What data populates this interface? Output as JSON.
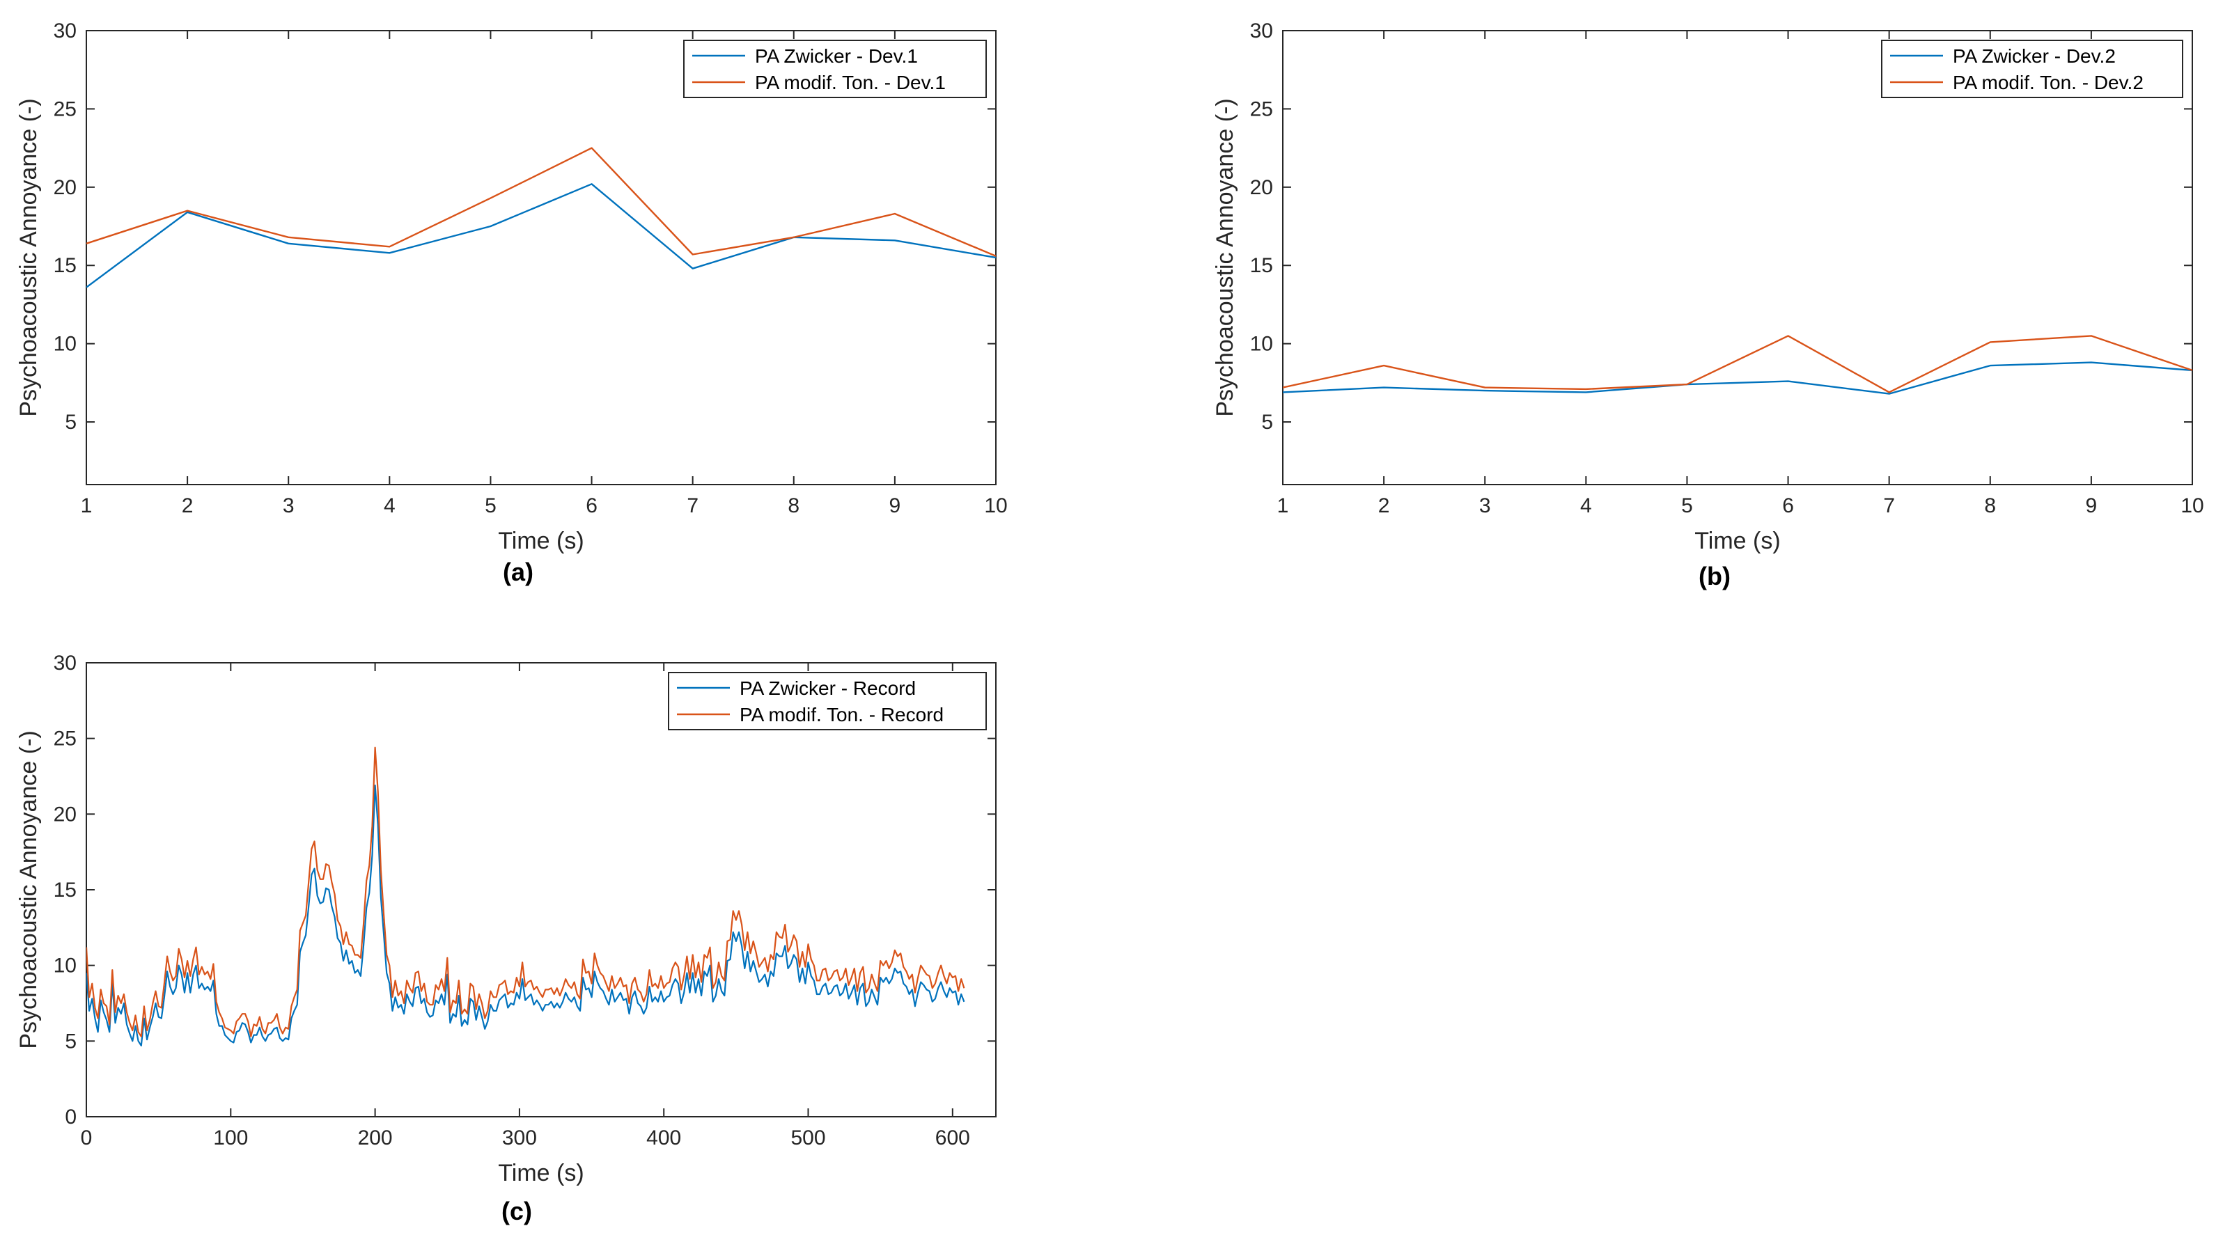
{
  "colors": {
    "zwicker": "#0072BD",
    "modified": "#D95319",
    "axis": "#262626"
  },
  "chart_data": [
    {
      "type": "line",
      "caption": "(a)",
      "xlabel": "Time (s)",
      "ylabel": "Psychoacoustic Annoyance (-)",
      "xlim": [
        1,
        10
      ],
      "ylim": [
        1,
        30
      ],
      "xticks": [
        1,
        2,
        3,
        4,
        5,
        6,
        7,
        8,
        9,
        10
      ],
      "yticks": [
        5,
        10,
        15,
        20,
        25,
        30
      ],
      "grid": false,
      "legend": "top-right",
      "x": [
        1,
        2,
        3,
        4,
        5,
        6,
        7,
        8,
        9,
        10
      ],
      "series": [
        {
          "name": "PA Zwicker - Dev.1",
          "color": "#0072BD",
          "values": [
            13.6,
            18.4,
            16.4,
            15.8,
            17.5,
            20.2,
            14.8,
            16.8,
            16.6,
            15.5
          ]
        },
        {
          "name": "PA modif. Ton. - Dev.1",
          "color": "#D95319",
          "values": [
            16.4,
            18.5,
            16.8,
            16.2,
            19.3,
            22.5,
            15.7,
            16.8,
            18.3,
            15.6
          ]
        }
      ]
    },
    {
      "type": "line",
      "caption": "(b)",
      "xlabel": "Time (s)",
      "ylabel": "Psychoacoustic Annoyance (-)",
      "xlim": [
        1,
        10
      ],
      "ylim": [
        1,
        30
      ],
      "xticks": [
        1,
        2,
        3,
        4,
        5,
        6,
        7,
        8,
        9,
        10
      ],
      "yticks": [
        5,
        10,
        15,
        20,
        25,
        30
      ],
      "grid": false,
      "legend": "top-right",
      "x": [
        1,
        2,
        3,
        4,
        5,
        6,
        7,
        8,
        9,
        10
      ],
      "series": [
        {
          "name": "PA Zwicker - Dev.2",
          "color": "#0072BD",
          "values": [
            6.9,
            7.2,
            7.0,
            6.9,
            7.4,
            7.6,
            6.8,
            8.6,
            8.8,
            8.3
          ]
        },
        {
          "name": "PA modif. Ton. - Dev.2",
          "color": "#D95319",
          "values": [
            7.2,
            8.6,
            7.2,
            7.1,
            7.4,
            10.5,
            6.9,
            10.1,
            10.5,
            8.3
          ]
        }
      ]
    },
    {
      "type": "line",
      "caption": "(c)",
      "xlabel": "Time (s)",
      "ylabel": "Psychoacoustic Annoyance (-)",
      "xlim": [
        0,
        630
      ],
      "ylim": [
        0,
        30
      ],
      "xticks": [
        0,
        100,
        200,
        300,
        400,
        500,
        600
      ],
      "yticks": [
        0,
        5,
        10,
        15,
        20,
        25,
        30
      ],
      "grid": false,
      "legend": "top-right",
      "x_step": 2,
      "series": [
        {
          "name": "PA Zwicker - Record",
          "color": "#0072BD",
          "values": [
            9.5,
            7.0,
            7.8,
            6.5,
            5.6,
            7.7,
            6.9,
            6.4,
            5.6,
            8.8,
            6.2,
            7.2,
            6.8,
            7.5,
            6.1,
            5.5,
            5.0,
            6.0,
            5.0,
            4.7,
            6.5,
            5.1,
            5.9,
            6.6,
            7.5,
            6.6,
            6.5,
            7.9,
            9.6,
            8.6,
            8.1,
            8.5,
            10.0,
            9.4,
            8.2,
            9.5,
            8.2,
            9.4,
            10.0,
            8.5,
            8.8,
            8.4,
            8.6,
            8.3,
            9.0,
            6.8,
            6.0,
            6.0,
            5.4,
            5.2,
            5.0,
            4.9,
            5.6,
            5.7,
            6.2,
            6.1,
            5.6,
            4.9,
            5.4,
            5.4,
            5.9,
            5.3,
            5.0,
            5.4,
            5.5,
            5.8,
            5.9,
            5.2,
            5.0,
            5.2,
            5.1,
            6.5,
            7.0,
            7.4,
            10.9,
            11.5,
            12.0,
            13.9,
            16.0,
            16.4,
            14.6,
            14.1,
            14.2,
            15.1,
            15.0,
            13.9,
            13.2,
            11.8,
            11.5,
            10.3,
            11.0,
            10.1,
            10.3,
            9.5,
            9.7,
            9.3,
            11.3,
            13.8,
            14.8,
            17.3,
            21.9,
            19.3,
            14.5,
            12.1,
            9.5,
            8.8,
            7.0,
            7.9,
            7.2,
            7.4,
            6.8,
            8.1,
            7.6,
            7.3,
            8.5,
            8.6,
            7.5,
            7.8,
            6.9,
            6.6,
            6.7,
            7.7,
            7.5,
            8.1,
            7.4,
            9.4,
            6.2,
            6.8,
            6.6,
            8.0,
            6.0,
            6.4,
            6.1,
            7.8,
            7.6,
            6.4,
            7.3,
            6.6,
            5.8,
            6.3,
            7.4,
            7.0,
            7.0,
            7.7,
            7.9,
            8.1,
            7.2,
            7.5,
            7.4,
            8.2,
            7.8,
            9.1,
            7.7,
            7.9,
            8.1,
            7.4,
            7.7,
            7.4,
            7.0,
            7.4,
            7.4,
            7.6,
            7.2,
            7.5,
            7.2,
            7.6,
            8.2,
            7.8,
            7.6,
            7.9,
            7.3,
            7.0,
            9.2,
            8.4,
            8.5,
            7.9,
            9.6,
            8.9,
            8.5,
            8.3,
            7.8,
            7.4,
            8.4,
            7.6,
            7.9,
            8.2,
            7.7,
            7.8,
            6.8,
            7.9,
            8.3,
            7.5,
            7.3,
            6.8,
            7.2,
            8.6,
            7.6,
            7.9,
            7.6,
            8.3,
            7.6,
            7.9,
            8.0,
            8.7,
            9.1,
            8.8,
            7.5,
            8.2,
            9.5,
            8.2,
            9.5,
            8.2,
            9.1,
            8.0,
            9.6,
            9.3,
            10.0,
            7.6,
            8.0,
            9.1,
            8.3,
            8.0,
            10.3,
            10.4,
            12.2,
            11.6,
            12.2,
            11.3,
            9.8,
            10.9,
            9.6,
            10.3,
            9.6,
            8.9,
            9.1,
            9.4,
            8.6,
            9.6,
            9.3,
            10.8,
            10.6,
            10.6,
            11.3,
            9.8,
            10.1,
            10.7,
            10.4,
            8.9,
            9.8,
            8.8,
            10.2,
            9.3,
            9.0,
            8.1,
            8.1,
            8.6,
            8.8,
            8.1,
            8.2,
            8.6,
            8.7,
            8.0,
            8.2,
            8.8,
            7.8,
            8.2,
            8.7,
            7.4,
            8.5,
            8.8,
            7.3,
            7.6,
            8.4,
            7.9,
            7.4,
            9.2,
            8.9,
            9.2,
            8.8,
            9.1,
            9.8,
            9.5,
            9.6,
            8.8,
            8.6,
            8.1,
            8.4,
            7.3,
            8.2,
            8.9,
            8.7,
            8.4,
            8.3,
            7.6,
            7.8,
            8.5,
            8.9,
            8.3,
            7.9,
            8.5,
            8.2,
            8.3,
            7.4,
            8.1,
            7.6
          ]
        },
        {
          "name": "PA modif. Ton. - Record",
          "color": "#D95319",
          "values": [
            11.2,
            7.9,
            8.8,
            7.2,
            6.5,
            8.4,
            7.5,
            7.3,
            6.1,
            9.7,
            6.9,
            8.0,
            7.5,
            8.1,
            6.9,
            6.2,
            5.7,
            6.7,
            5.6,
            5.3,
            7.3,
            5.7,
            6.4,
            7.5,
            8.3,
            7.3,
            7.2,
            8.8,
            10.6,
            9.6,
            9.0,
            9.3,
            11.1,
            10.4,
            9.2,
            10.3,
            9.3,
            10.4,
            11.2,
            9.4,
            9.9,
            9.4,
            9.6,
            9.1,
            10.1,
            7.6,
            6.9,
            6.5,
            5.9,
            5.8,
            5.7,
            5.5,
            6.3,
            6.5,
            6.8,
            6.8,
            6.3,
            5.3,
            6.1,
            6.0,
            6.6,
            5.8,
            5.5,
            6.2,
            6.2,
            6.4,
            6.8,
            5.9,
            5.5,
            5.9,
            5.8,
            7.3,
            7.9,
            8.4,
            12.3,
            12.8,
            13.3,
            15.5,
            17.7,
            18.2,
            16.3,
            15.7,
            15.7,
            16.7,
            16.6,
            15.5,
            14.7,
            13.0,
            12.6,
            11.4,
            12.2,
            11.4,
            11.3,
            10.7,
            10.7,
            10.5,
            12.7,
            15.6,
            16.6,
            19.2,
            24.4,
            21.5,
            16.3,
            13.4,
            10.7,
            10.0,
            7.9,
            9.0,
            8.0,
            8.3,
            7.5,
            9.0,
            8.5,
            8.2,
            9.5,
            9.6,
            8.3,
            8.8,
            7.6,
            7.4,
            7.4,
            8.7,
            8.4,
            9.1,
            8.3,
            10.5,
            6.9,
            7.7,
            7.5,
            9.0,
            6.8,
            7.1,
            6.8,
            8.8,
            8.6,
            7.1,
            8.1,
            7.5,
            6.5,
            7.0,
            8.3,
            7.9,
            7.9,
            8.7,
            8.8,
            9.0,
            8.1,
            8.3,
            8.2,
            9.2,
            8.6,
            10.2,
            8.6,
            8.9,
            9.0,
            8.4,
            8.6,
            8.2,
            7.9,
            8.4,
            8.4,
            8.5,
            8.1,
            8.5,
            8.0,
            8.5,
            9.1,
            8.7,
            8.5,
            8.9,
            8.1,
            7.8,
            10.4,
            9.5,
            9.6,
            8.8,
            10.8,
            10.0,
            9.5,
            9.3,
            8.8,
            8.3,
            9.3,
            8.5,
            8.8,
            9.2,
            8.6,
            8.7,
            7.5,
            8.8,
            9.2,
            8.4,
            8.2,
            7.6,
            8.1,
            9.7,
            8.6,
            8.8,
            8.5,
            9.3,
            8.5,
            8.8,
            8.9,
            9.8,
            10.2,
            9.9,
            8.4,
            9.3,
            10.6,
            9.1,
            10.7,
            9.2,
            10.2,
            8.9,
            10.7,
            10.5,
            11.2,
            8.5,
            8.9,
            10.2,
            9.3,
            9.0,
            11.6,
            11.7,
            13.6,
            13.0,
            13.6,
            12.7,
            11.0,
            12.2,
            10.8,
            11.6,
            10.8,
            9.9,
            10.2,
            10.5,
            9.6,
            10.7,
            10.4,
            12.2,
            11.9,
            11.8,
            12.7,
            10.9,
            11.3,
            12.0,
            11.6,
            9.9,
            10.9,
            9.9,
            11.4,
            10.4,
            10.0,
            9.0,
            9.0,
            9.7,
            9.8,
            9.0,
            9.2,
            9.6,
            9.7,
            9.0,
            9.2,
            9.8,
            8.7,
            9.2,
            9.8,
            8.3,
            9.5,
            9.9,
            8.2,
            8.5,
            9.4,
            8.8,
            8.3,
            10.3,
            10.0,
            10.3,
            9.8,
            10.2,
            11.0,
            10.6,
            10.8,
            9.9,
            9.6,
            9.1,
            9.4,
            8.2,
            9.2,
            10.0,
            9.7,
            9.4,
            9.3,
            8.5,
            8.8,
            9.5,
            10.0,
            9.3,
            8.8,
            9.5,
            9.2,
            9.3,
            8.3,
            9.1,
            8.5
          ]
        }
      ]
    }
  ]
}
